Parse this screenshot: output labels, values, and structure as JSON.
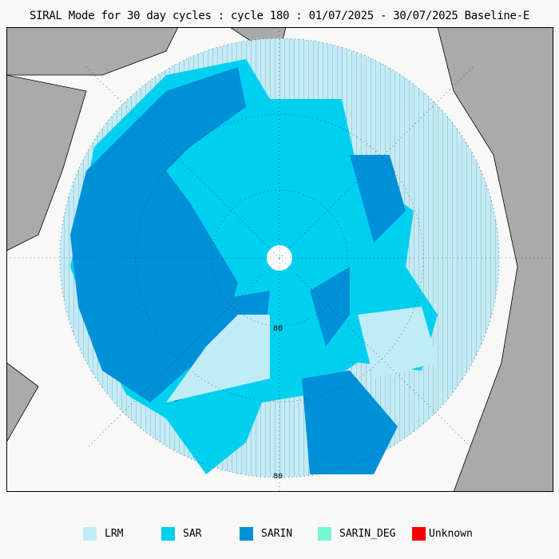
{
  "title": "SIRAL Mode for 30 day cycles : cycle 180 : 01/07/2025 - 30/07/2025 Baseline-E",
  "map": {
    "lat_labels": [
      "80",
      "80"
    ],
    "land_color": "#aaaaaa",
    "ocean_color": "#f8f8f8"
  },
  "legend": [
    {
      "label": "LRM",
      "color": "#c0ecf8"
    },
    {
      "label": "SAR",
      "color": "#00d0f0"
    },
    {
      "label": "SARIN",
      "color": "#0090d8"
    },
    {
      "label": "SARIN_DEG",
      "color": "#78f8d0"
    },
    {
      "label": "Unknown",
      "color": "#f80000"
    }
  ]
}
